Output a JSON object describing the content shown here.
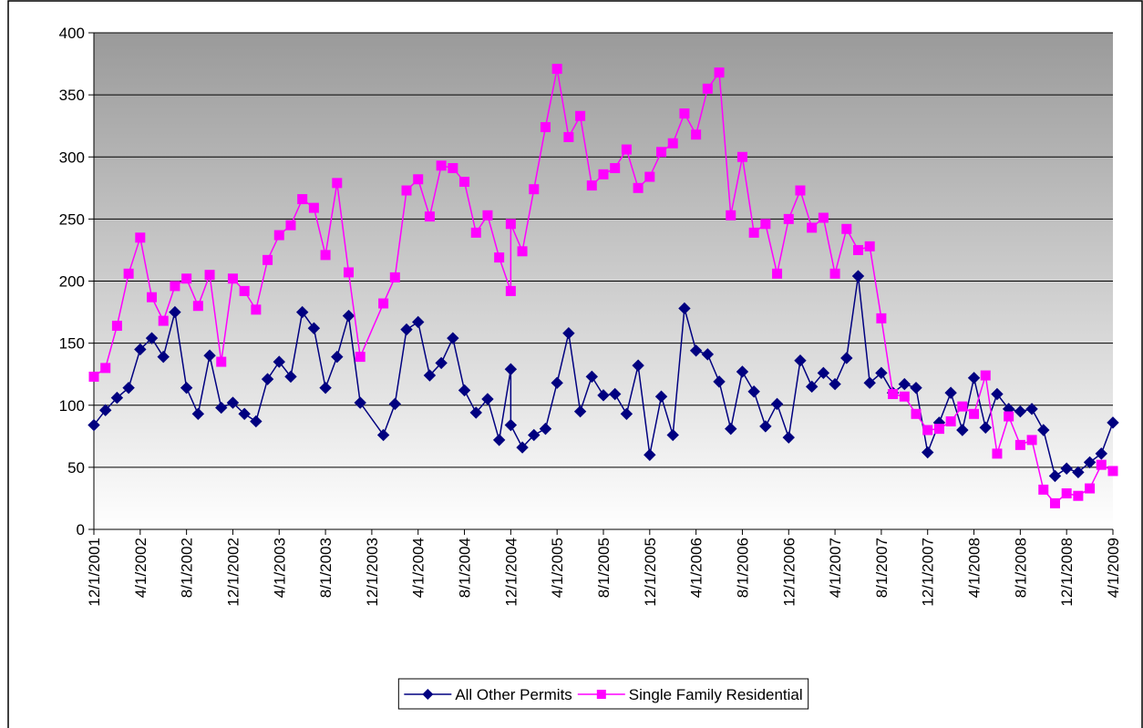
{
  "chart_data": {
    "type": "line",
    "x": [
      "12/1/2001",
      "1/1/2002",
      "2/1/2002",
      "3/1/2002",
      "4/1/2002",
      "5/1/2002",
      "6/1/2002",
      "7/1/2002",
      "8/1/2002",
      "9/1/2002",
      "10/1/2002",
      "11/1/2002",
      "12/1/2002",
      "1/1/2003",
      "2/1/2003",
      "3/1/2003",
      "4/1/2003",
      "5/1/2003",
      "6/1/2003",
      "7/1/2003",
      "8/1/2003",
      "9/1/2003",
      "10/1/2003",
      "11/1/2003",
      "1/1/2004",
      "2/1/2004",
      "3/1/2004",
      "4/1/2004",
      "5/1/2004",
      "6/1/2004",
      "7/1/2004",
      "8/1/2004",
      "9/1/2004",
      "10/1/2004",
      "11/1/2004",
      "12/1/2004",
      "12/1/2004",
      "1/1/2005",
      "2/1/2005",
      "3/1/2005",
      "4/1/2005",
      "5/1/2005",
      "6/1/2005",
      "7/1/2005",
      "8/1/2005",
      "9/1/2005",
      "10/1/2005",
      "11/1/2005",
      "12/1/2005",
      "1/1/2006",
      "2/1/2006",
      "3/1/2006",
      "4/1/2006",
      "5/1/2006",
      "6/1/2006",
      "7/1/2006",
      "8/1/2006",
      "9/1/2006",
      "10/1/2006",
      "11/1/2006",
      "12/1/2006",
      "1/1/2007",
      "2/1/2007",
      "3/1/2007",
      "4/1/2007",
      "5/1/2007",
      "6/1/2007",
      "7/1/2007",
      "8/1/2007",
      "9/1/2007",
      "10/1/2007",
      "11/1/2007",
      "12/1/2007",
      "1/1/2008",
      "2/1/2008",
      "3/1/2008",
      "4/1/2008",
      "5/1/2008",
      "6/1/2008",
      "7/1/2008",
      "8/1/2008",
      "9/1/2008",
      "10/1/2008",
      "11/1/2008",
      "12/1/2008",
      "1/1/2009",
      "2/1/2009",
      "3/1/2009",
      "4/1/2009"
    ],
    "series": [
      {
        "name": "All Other Permits",
        "color": "#000080",
        "marker": "diamond",
        "values": [
          84,
          96,
          106,
          114,
          145,
          154,
          139,
          175,
          114,
          93,
          140,
          98,
          102,
          93,
          87,
          121,
          135,
          123,
          175,
          162,
          114,
          139,
          172,
          102,
          76,
          101,
          161,
          167,
          124,
          134,
          154,
          112,
          94,
          105,
          72,
          129,
          84,
          66,
          76,
          81,
          118,
          158,
          95,
          123,
          108,
          109,
          93,
          132,
          60,
          107,
          76,
          178,
          144,
          141,
          119,
          81,
          127,
          111,
          83,
          101,
          74,
          136,
          115,
          126,
          117,
          138,
          204,
          118,
          126,
          110,
          117,
          114,
          62,
          86,
          110,
          80,
          122,
          82,
          109,
          97,
          95,
          97,
          80,
          43,
          49,
          46,
          54,
          61,
          86
        ]
      },
      {
        "name": "Single Family Residential",
        "color": "#ff00ff",
        "marker": "square",
        "values": [
          123,
          130,
          164,
          206,
          235,
          187,
          168,
          196,
          202,
          180,
          205,
          135,
          202,
          192,
          177,
          217,
          237,
          245,
          266,
          259,
          221,
          279,
          207,
          139,
          182,
          203,
          273,
          282,
          252,
          293,
          291,
          280,
          239,
          253,
          219,
          192,
          246,
          224,
          274,
          324,
          371,
          316,
          333,
          277,
          286,
          291,
          306,
          275,
          284,
          304,
          311,
          335,
          318,
          355,
          368,
          253,
          300,
          239,
          246,
          206,
          250,
          273,
          243,
          251,
          206,
          242,
          225,
          228,
          170,
          109,
          107,
          93,
          80,
          81,
          87,
          99,
          93,
          124,
          61,
          91,
          68,
          72,
          32,
          21,
          29,
          27,
          33,
          52,
          47
        ]
      }
    ],
    "xlim": [
      "12/1/2001",
      "4/1/2009"
    ],
    "xticks": [
      "12/1/2001",
      "4/1/2002",
      "8/1/2002",
      "12/1/2002",
      "4/1/2003",
      "8/1/2003",
      "12/1/2003",
      "4/1/2004",
      "8/1/2004",
      "12/1/2004",
      "4/1/2005",
      "8/1/2005",
      "12/1/2005",
      "4/1/2006",
      "8/1/2006",
      "12/1/2006",
      "4/1/2007",
      "8/1/2007",
      "12/1/2007",
      "4/1/2008",
      "8/1/2008",
      "12/1/2008",
      "4/1/2009"
    ],
    "ylim": [
      0,
      400
    ],
    "yticks": [
      0,
      50,
      100,
      150,
      200,
      250,
      300,
      350,
      400
    ],
    "grid": true,
    "legend": "bottom"
  }
}
